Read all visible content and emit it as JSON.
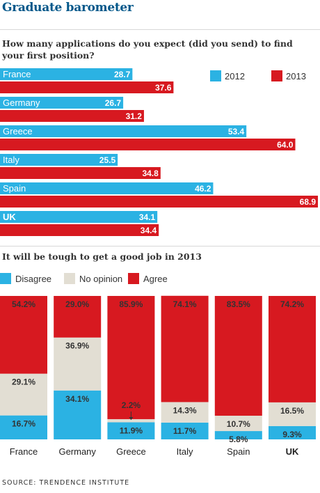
{
  "title": "Graduate barometer",
  "colors": {
    "blue": "#2bb2e3",
    "red": "#d71920",
    "grey": "#e2ded3",
    "title": "#005689"
  },
  "chart_data": [
    {
      "type": "bar",
      "orientation": "horizontal",
      "title": "How many applications do you expect (did you send) to find your first position?",
      "categories": [
        "France",
        "Germany",
        "Greece",
        "Italy",
        "Spain",
        "UK"
      ],
      "series": [
        {
          "name": "2012",
          "color": "#2bb2e3",
          "values": [
            28.7,
            26.7,
            53.4,
            25.5,
            46.2,
            34.1
          ]
        },
        {
          "name": "2013",
          "color": "#d71920",
          "values": [
            37.6,
            31.2,
            64.0,
            34.8,
            68.9,
            34.4
          ]
        }
      ],
      "xlim": [
        0,
        68.9
      ],
      "legend": "top-right"
    },
    {
      "type": "bar",
      "stacked": "100%",
      "title": "It will be tough to get a good job in 2013",
      "categories": [
        "France",
        "Germany",
        "Greece",
        "Italy",
        "Spain",
        "UK"
      ],
      "series": [
        {
          "name": "Disagree",
          "color": "#2bb2e3",
          "values": [
            16.7,
            34.1,
            11.9,
            11.7,
            5.8,
            9.3
          ]
        },
        {
          "name": "No opinion",
          "color": "#e2ded3",
          "values": [
            29.1,
            36.9,
            2.2,
            14.3,
            10.7,
            16.5
          ]
        },
        {
          "name": "Agree",
          "color": "#d71920",
          "values": [
            54.2,
            29.0,
            85.9,
            74.1,
            83.5,
            74.2
          ]
        }
      ],
      "ylim": [
        0,
        100
      ],
      "legend": "top-left"
    }
  ],
  "source": "SOURCE: TRENDENCE INSTITUTE"
}
